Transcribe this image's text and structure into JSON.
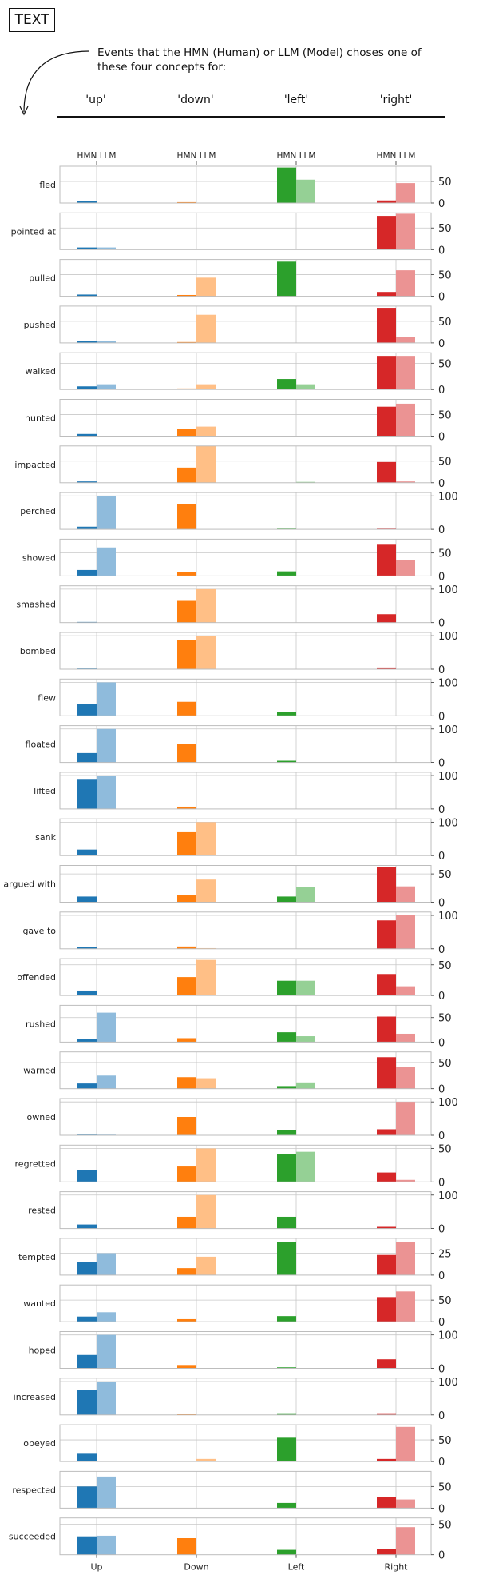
{
  "header": {
    "box_label": "TEXT",
    "caption": "Events that the HMN (Human) or LLM (Model) choses one of these four concepts for:",
    "concepts": [
      "'up'",
      "'down'",
      "'left'",
      "'right'"
    ]
  },
  "chart_data": {
    "type": "bar",
    "top_tick_label": "HMN LLM",
    "categories": [
      "Up",
      "Down",
      "Left",
      "Right"
    ],
    "series": [
      {
        "name": "HMN"
      },
      {
        "name": "LLM"
      }
    ],
    "colors": {
      "Up": [
        "#1f77b4",
        "#8fbbdc"
      ],
      "Down": [
        "#ff7f0e",
        "#ffbf86"
      ],
      "Left": [
        "#2ca02c",
        "#95d095"
      ],
      "Right": [
        "#d62728",
        "#eb9393"
      ]
    },
    "rows": [
      {
        "label": "fled",
        "ymax": 85,
        "yticks": [
          0,
          50
        ],
        "values": [
          [
            5,
            0
          ],
          [
            2,
            0
          ],
          [
            82,
            54
          ],
          [
            6,
            46
          ]
        ]
      },
      {
        "label": "pointed at",
        "ymax": 85,
        "yticks": [
          0,
          50
        ],
        "values": [
          [
            5,
            5
          ],
          [
            2,
            0
          ],
          [
            0,
            0
          ],
          [
            78,
            83
          ]
        ]
      },
      {
        "label": "pulled",
        "ymax": 85,
        "yticks": [
          0,
          50
        ],
        "values": [
          [
            4,
            0
          ],
          [
            3,
            43
          ],
          [
            80,
            0
          ],
          [
            10,
            60
          ]
        ]
      },
      {
        "label": "pushed",
        "ymax": 85,
        "yticks": [
          0,
          50
        ],
        "values": [
          [
            4,
            4
          ],
          [
            2,
            65
          ],
          [
            0,
            0
          ],
          [
            81,
            14
          ]
        ]
      },
      {
        "label": "walked",
        "ymax": 70,
        "yticks": [
          0,
          50
        ],
        "values": [
          [
            6,
            10
          ],
          [
            2,
            10
          ],
          [
            20,
            10
          ],
          [
            64,
            64
          ]
        ]
      },
      {
        "label": "hunted",
        "ymax": 85,
        "yticks": [
          0,
          50
        ],
        "values": [
          [
            5,
            0
          ],
          [
            17,
            22
          ],
          [
            0,
            0
          ],
          [
            68,
            75
          ]
        ]
      },
      {
        "label": "impacted",
        "ymax": 85,
        "yticks": [
          0,
          50
        ],
        "values": [
          [
            3,
            0
          ],
          [
            35,
            85
          ],
          [
            0,
            2
          ],
          [
            48,
            3
          ]
        ]
      },
      {
        "label": "perched",
        "ymax": 110,
        "yticks": [
          0,
          100
        ],
        "values": [
          [
            8,
            100
          ],
          [
            75,
            0
          ],
          [
            2,
            0
          ],
          [
            2,
            0
          ]
        ]
      },
      {
        "label": "showed",
        "ymax": 80,
        "yticks": [
          0,
          50
        ],
        "values": [
          [
            13,
            62
          ],
          [
            8,
            0
          ],
          [
            10,
            0
          ],
          [
            68,
            35
          ]
        ]
      },
      {
        "label": "smashed",
        "ymax": 110,
        "yticks": [
          0,
          100
        ],
        "values": [
          [
            2,
            0
          ],
          [
            65,
            100
          ],
          [
            0,
            0
          ],
          [
            25,
            0
          ]
        ]
      },
      {
        "label": "bombed",
        "ymax": 110,
        "yticks": [
          0,
          100
        ],
        "values": [
          [
            2,
            0
          ],
          [
            88,
            100
          ],
          [
            0,
            0
          ],
          [
            5,
            0
          ]
        ]
      },
      {
        "label": "flew",
        "ymax": 110,
        "yticks": [
          0,
          100
        ],
        "values": [
          [
            35,
            100
          ],
          [
            42,
            0
          ],
          [
            11,
            0
          ],
          [
            0,
            0
          ]
        ]
      },
      {
        "label": "floated",
        "ymax": 110,
        "yticks": [
          0,
          100
        ],
        "values": [
          [
            28,
            100
          ],
          [
            55,
            0
          ],
          [
            5,
            0
          ],
          [
            0,
            0
          ]
        ]
      },
      {
        "label": "lifted",
        "ymax": 110,
        "yticks": [
          0,
          100
        ],
        "values": [
          [
            90,
            100
          ],
          [
            7,
            0
          ],
          [
            0,
            0
          ],
          [
            0,
            0
          ]
        ]
      },
      {
        "label": "sank",
        "ymax": 110,
        "yticks": [
          0,
          100
        ],
        "values": [
          [
            18,
            0
          ],
          [
            70,
            100
          ],
          [
            0,
            0
          ],
          [
            0,
            0
          ]
        ]
      },
      {
        "label": "argued with",
        "ymax": 65,
        "yticks": [
          0,
          50
        ],
        "values": [
          [
            10,
            0
          ],
          [
            12,
            40
          ],
          [
            10,
            27
          ],
          [
            62,
            28
          ]
        ]
      },
      {
        "label": "gave to",
        "ymax": 110,
        "yticks": [
          0,
          100
        ],
        "values": [
          [
            5,
            0
          ],
          [
            7,
            2
          ],
          [
            0,
            0
          ],
          [
            85,
            100
          ]
        ]
      },
      {
        "label": "offended",
        "ymax": 60,
        "yticks": [
          0,
          50
        ],
        "values": [
          [
            8,
            0
          ],
          [
            30,
            58
          ],
          [
            24,
            24
          ],
          [
            35,
            15
          ]
        ]
      },
      {
        "label": "rushed",
        "ymax": 75,
        "yticks": [
          0,
          50
        ],
        "values": [
          [
            7,
            60
          ],
          [
            8,
            0
          ],
          [
            20,
            12
          ],
          [
            52,
            17
          ]
        ]
      },
      {
        "label": "warned",
        "ymax": 70,
        "yticks": [
          0,
          50
        ],
        "values": [
          [
            10,
            25
          ],
          [
            22,
            20
          ],
          [
            5,
            12
          ],
          [
            60,
            42
          ]
        ]
      },
      {
        "label": "owned",
        "ymax": 110,
        "yticks": [
          0,
          100
        ],
        "values": [
          [
            2,
            2
          ],
          [
            55,
            0
          ],
          [
            15,
            0
          ],
          [
            18,
            100
          ]
        ]
      },
      {
        "label": "regretted",
        "ymax": 55,
        "yticks": [
          0,
          50
        ],
        "values": [
          [
            18,
            0
          ],
          [
            23,
            50
          ],
          [
            41,
            45
          ],
          [
            14,
            3
          ]
        ]
      },
      {
        "label": "rested",
        "ymax": 110,
        "yticks": [
          0,
          100
        ],
        "values": [
          [
            12,
            0
          ],
          [
            35,
            100
          ],
          [
            35,
            0
          ],
          [
            5,
            0
          ]
        ]
      },
      {
        "label": "tempted",
        "ymax": 42,
        "yticks": [
          0,
          25
        ],
        "values": [
          [
            15,
            25
          ],
          [
            8,
            21
          ],
          [
            38,
            0
          ],
          [
            23,
            38
          ]
        ]
      },
      {
        "label": "wanted",
        "ymax": 85,
        "yticks": [
          0,
          50
        ],
        "values": [
          [
            12,
            22
          ],
          [
            6,
            0
          ],
          [
            13,
            0
          ],
          [
            57,
            70
          ]
        ]
      },
      {
        "label": "hoped",
        "ymax": 110,
        "yticks": [
          0,
          100
        ],
        "values": [
          [
            40,
            100
          ],
          [
            10,
            0
          ],
          [
            3,
            0
          ],
          [
            27,
            0
          ]
        ]
      },
      {
        "label": "increased",
        "ymax": 110,
        "yticks": [
          0,
          100
        ],
        "values": [
          [
            75,
            100
          ],
          [
            4,
            0
          ],
          [
            5,
            0
          ],
          [
            5,
            0
          ]
        ]
      },
      {
        "label": "obeyed",
        "ymax": 85,
        "yticks": [
          0,
          50
        ],
        "values": [
          [
            18,
            0
          ],
          [
            2,
            6
          ],
          [
            55,
            0
          ],
          [
            6,
            80
          ]
        ]
      },
      {
        "label": "respected",
        "ymax": 85,
        "yticks": [
          0,
          50
        ],
        "values": [
          [
            50,
            73
          ],
          [
            0,
            0
          ],
          [
            12,
            0
          ],
          [
            25,
            20
          ]
        ]
      },
      {
        "label": "succeeded",
        "ymax": 60,
        "yticks": [
          0,
          50
        ],
        "values": [
          [
            30,
            31
          ],
          [
            27,
            0
          ],
          [
            8,
            0
          ],
          [
            10,
            45
          ]
        ]
      }
    ]
  }
}
